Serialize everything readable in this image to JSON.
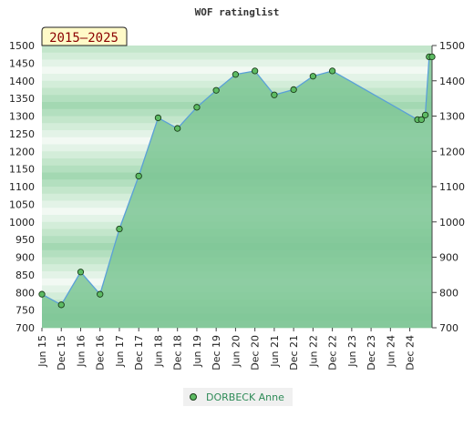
{
  "chart_data": {
    "type": "area",
    "title": "WOF ratinglist",
    "badge": "2015–2025",
    "xlabel": "",
    "ylabel": "",
    "ylim": [
      700,
      1500
    ],
    "yticks": [
      700,
      750,
      800,
      850,
      900,
      950,
      1000,
      1050,
      1100,
      1150,
      1200,
      1250,
      1300,
      1350,
      1400,
      1450,
      1500
    ],
    "yticks_right": [
      700,
      800,
      900,
      1000,
      1100,
      1200,
      1300,
      1400,
      1500
    ],
    "xlim": [
      0,
      20
    ],
    "xtick_labels": [
      "Jun 15",
      "Dec 15",
      "Jun 16",
      "Dec 16",
      "Jun 17",
      "Dec 17",
      "Jun 18",
      "Dec 18",
      "Jun 19",
      "Dec 19",
      "Jun 20",
      "Dec 20",
      "Jun 21",
      "Dec 21",
      "Jun 22",
      "Dec 22",
      "Jun 23",
      "Dec 23",
      "Jun 24",
      "Dec 24"
    ],
    "legend_position": "bottom",
    "colors": {
      "fill": "#7cc594",
      "line": "#5aa0d8",
      "marker": "#5dbb63",
      "marker_edge": "#1a3d1a",
      "badge_bg": "#fffac8"
    },
    "series": [
      {
        "name": "DORBECK Anne",
        "x": [
          0,
          1,
          2,
          3,
          4,
          5,
          6,
          7,
          8,
          9,
          10,
          11,
          12,
          13,
          14,
          15,
          19.4,
          19.6,
          19.8,
          20,
          20.15
        ],
        "values": [
          795,
          765,
          858,
          795,
          980,
          1130,
          1295,
          1265,
          1325,
          1373,
          1418,
          1428,
          1360,
          1375,
          1413,
          1428,
          1290,
          1290,
          1303,
          1468,
          1468
        ]
      }
    ]
  }
}
